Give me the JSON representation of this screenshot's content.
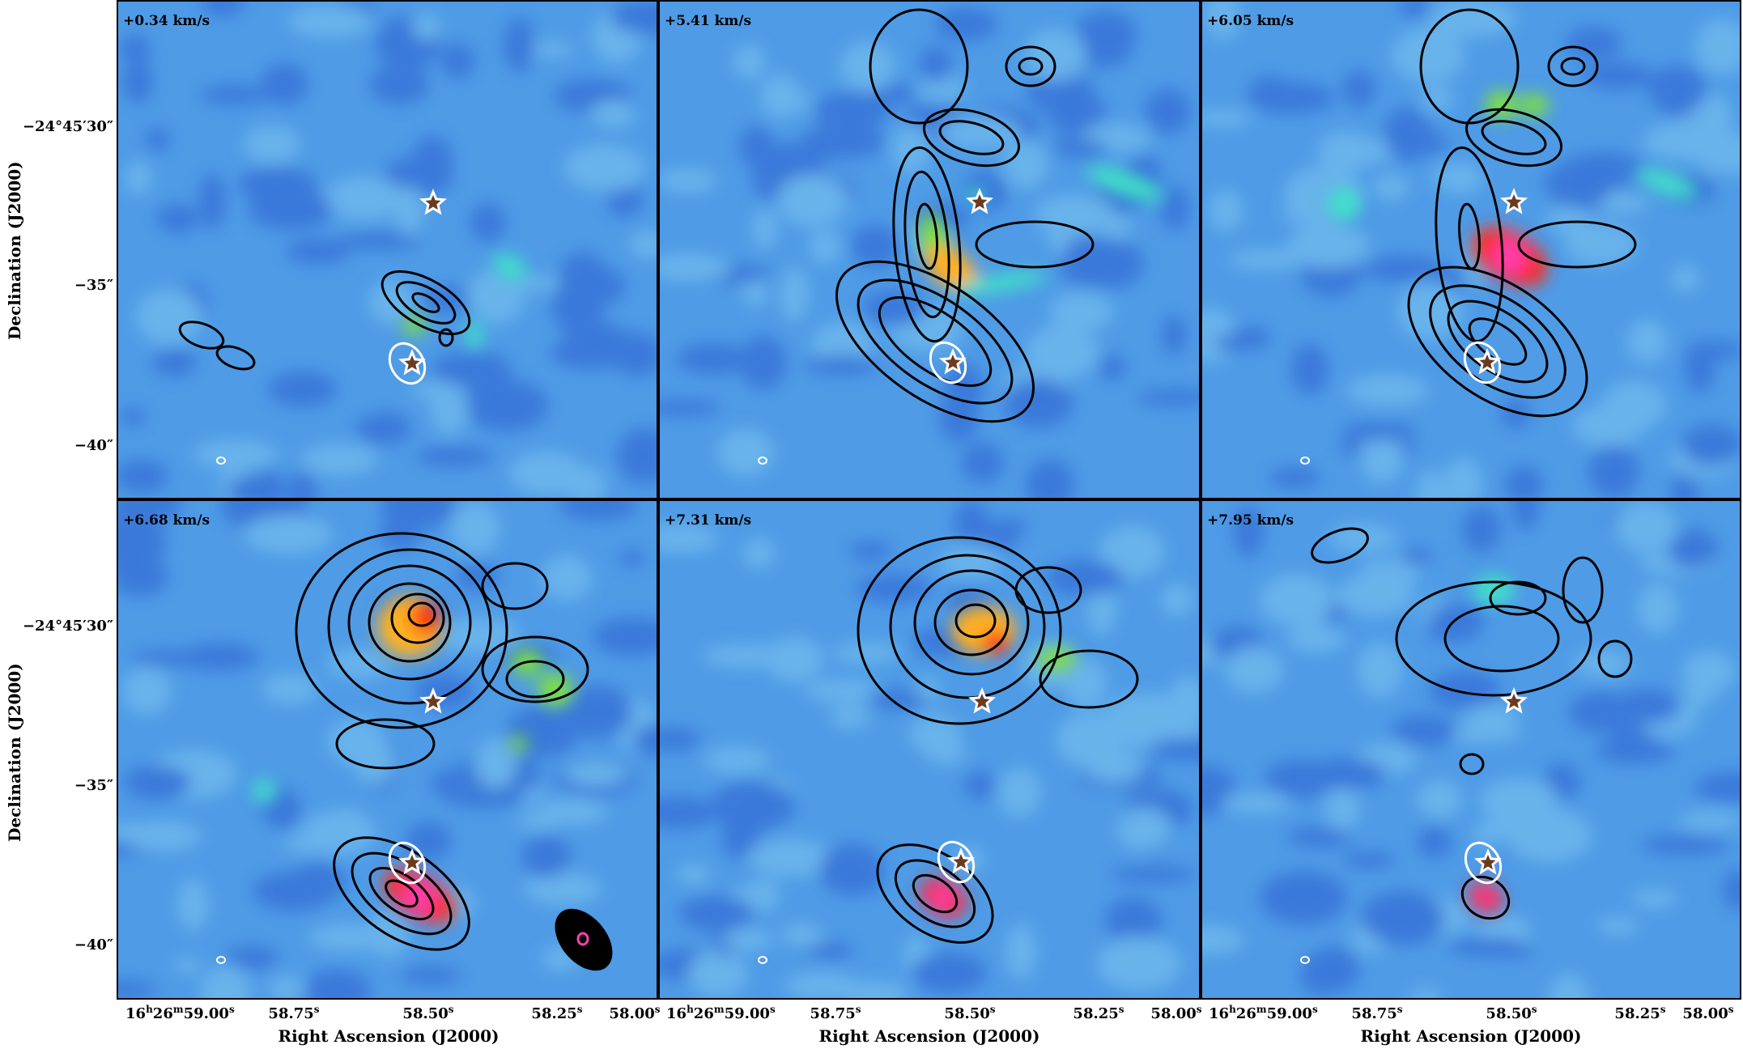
{
  "y_axis": {
    "label": "Declination (J2000)",
    "ticks": [
      "−24°45′30″",
      "−35″",
      "−40″"
    ]
  },
  "x_axis": {
    "label": "Right Ascension (J2000)",
    "ticks": [
      {
        "h": "16",
        "hs": "h",
        "m": "26",
        "ms": "m",
        "s": "59.00",
        "ss": "s"
      },
      {
        "s": "58.75",
        "ss": "s"
      },
      {
        "s": "58.50",
        "ss": "s"
      },
      {
        "s": "58.25",
        "ss": "s"
      },
      {
        "s": "58.00",
        "ss": "s"
      }
    ]
  },
  "panels": [
    {
      "velocity": "+0.34 km/s"
    },
    {
      "velocity": "+5.41 km/s"
    },
    {
      "velocity": "+6.05 km/s"
    },
    {
      "velocity": "+6.68 km/s"
    },
    {
      "velocity": "+7.31 km/s"
    },
    {
      "velocity": "+7.95 km/s"
    }
  ],
  "colors": {
    "background_map": "#4f9be6",
    "emission_low": "#3fe0c8",
    "emission_mid": "#7ee040",
    "emission_high": "#ff2a10",
    "emission_peak": "#ff40b0",
    "contour": "#000000",
    "star_fill": "#6b3a1e",
    "star_edge": "#ffffff"
  },
  "icons": [
    "star-marker-icon",
    "beam-ellipse-icon"
  ]
}
